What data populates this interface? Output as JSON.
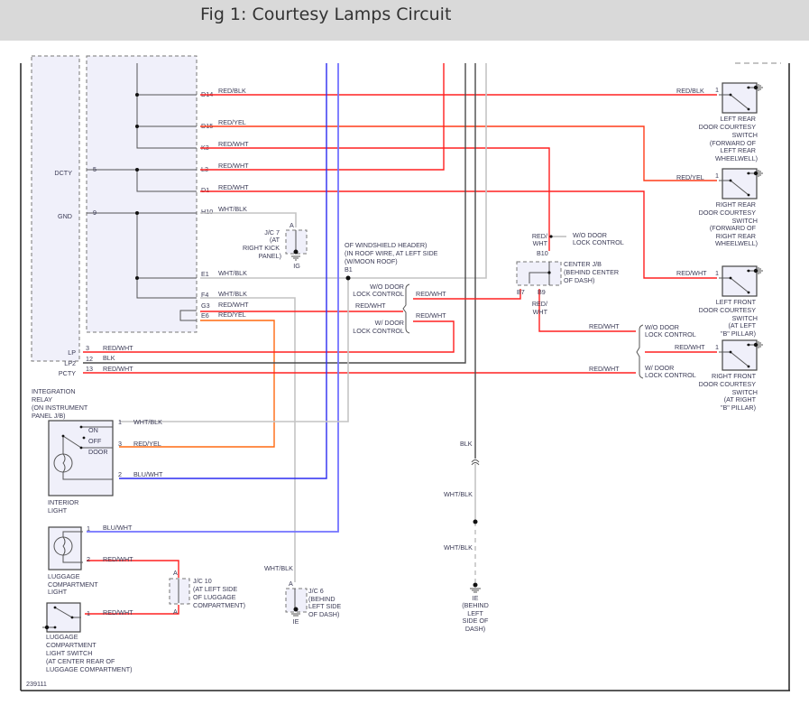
{
  "title": "Fig 1: Courtesy Lamps Circuit",
  "figure_id": "239111",
  "colors": {
    "red": "#ff2020",
    "red_yel": "#ff3b1a",
    "orange": "#ff6a10",
    "gray": "#c4c4c4",
    "black": "#4a4a4a",
    "blue": "#2c2cf0",
    "light_blue": "#7272ff",
    "title_bg": "#d9d9d9"
  },
  "relay": {
    "name": [
      "INTEGRATION",
      "RELAY",
      "(ON INSTRUMENT",
      "PANEL J/B)"
    ],
    "terminals": {
      "dcty": "DCTY",
      "gnd": "GND",
      "lp": "LP",
      "lp2": "LP2",
      "pcty": "PCTY"
    },
    "pins": {
      "dcty": "5",
      "gnd": "9",
      "lp": "3",
      "lp2": "12",
      "pcty": "13"
    },
    "connectors": [
      "D14",
      "D15",
      "K3",
      "L3",
      "D1",
      "H10",
      "E1",
      "F4",
      "G3",
      "E6"
    ],
    "wires": [
      "RED/BLK",
      "RED/YEL",
      "RED/WHT",
      "RED/WHT",
      "RED/WHT",
      "WHT/BLK",
      "WHT/BLK",
      "WHT/BLK",
      "RED/WHT",
      "RED/YEL"
    ],
    "lower_wires": {
      "lp": "RED/WHT",
      "lp2": "BLK",
      "pcty": "RED/WHT"
    }
  },
  "jc7": {
    "name": [
      "J/C 7",
      "(AT",
      "RIGHT KICK",
      "PANEL)"
    ],
    "pin": "A",
    "ground": "IG"
  },
  "windshield": {
    "lines": [
      "OF WINDSHIELD HEADER)",
      "(IN ROOF WIRE, AT LEFT SIDE",
      "(W/MOON ROOF)"
    ],
    "pin": "B1"
  },
  "mid_options": {
    "wo": [
      "W/O DOOR",
      "LOCK CONTROL"
    ],
    "w": [
      "W/ DOOR",
      "LOCK CONTROL"
    ],
    "wire_in": "RED/WHT",
    "wire_wo": "RED/WHT",
    "wire_w": "RED/WHT"
  },
  "center_jb": {
    "name": [
      "CENTER J/B",
      "(BEHIND CENTER",
      "OF DASH)"
    ],
    "pins": {
      "b10": "B10",
      "b7": "B7",
      "b9": "B9"
    },
    "wire_top": [
      "RED/",
      "WHT"
    ],
    "wire_bottom": [
      "RED/",
      "WHT"
    ],
    "note": [
      "W/O DOOR",
      "LOCK CONTROL"
    ]
  },
  "right_options": {
    "wo": [
      "W/O DOOR",
      "LOCK CONTROL"
    ],
    "w": [
      "W/ DOOR",
      "LOCK CONTROL"
    ],
    "wire_wo": "RED/WHT",
    "wire_out": "RED/WHT",
    "wire_w": "RED/WHT"
  },
  "switches": [
    {
      "name": [
        "LEFT REAR",
        "DOOR COURTESY",
        "SWITCH",
        "(FORWARD OF",
        "LEFT REAR",
        "WHEELWELL)"
      ],
      "pin": "1",
      "wire": "RED/BLK"
    },
    {
      "name": [
        "RIGHT REAR",
        "DOOR COURTESY",
        "SWITCH",
        "(FORWARD OF",
        "RIGHT REAR",
        "WHEELWELL)"
      ],
      "pin": "1",
      "wire": "RED/YEL"
    },
    {
      "name": [
        "LEFT FRONT",
        "DOOR COURTESY",
        "SWITCH",
        "(AT LEFT",
        "\"B\" PILLAR)"
      ],
      "pin": "1",
      "wire": "RED/WHT"
    },
    {
      "name": [
        "RIGHT FRONT",
        "DOOR COURTESY",
        "SWITCH",
        "(AT RIGHT",
        "\"B\" PILLAR)"
      ],
      "pin": "1",
      "wire": "RED/WHT"
    }
  ],
  "interior_light": {
    "name": [
      "INTERIOR",
      "LIGHT"
    ],
    "positions": [
      "ON",
      "OFF",
      "DOOR"
    ],
    "pins": [
      "1",
      "3",
      "2"
    ],
    "wires": [
      "WHT/BLK",
      "RED/YEL",
      "BLU/WHT"
    ]
  },
  "luggage_light": {
    "name": [
      "LUGGAGE",
      "COMPARTMENT",
      "LIGHT"
    ],
    "pins": [
      "1",
      "2"
    ],
    "wires": [
      "BLU/WHT",
      "RED/WHT"
    ]
  },
  "jc10": {
    "name": [
      "J/C 10",
      "(AT LEFT SIDE",
      "OF LUGGAGE",
      "COMPARTMENT)"
    ],
    "pin": "A"
  },
  "luggage_switch": {
    "name": [
      "LUGGAGE",
      "COMPARTMENT",
      "LIGHT SWITCH",
      "(AT CENTER REAR OF",
      "LUGGAGE COMPARTMENT)"
    ],
    "pin": "1",
    "wire": "RED/WHT"
  },
  "jc6": {
    "name": [
      "J/C 6",
      "(BEHIND",
      "LEFT SIDE",
      "OF DASH)"
    ],
    "pin": "A",
    "ground": "IE",
    "wire": "WHT/BLK"
  },
  "ground_ie": {
    "wires": [
      "BLK",
      "WHT/BLK",
      "WHT/BLK"
    ],
    "name": [
      "IE",
      "(BEHIND",
      "LEFT",
      "SIDE OF",
      "DASH)"
    ]
  }
}
